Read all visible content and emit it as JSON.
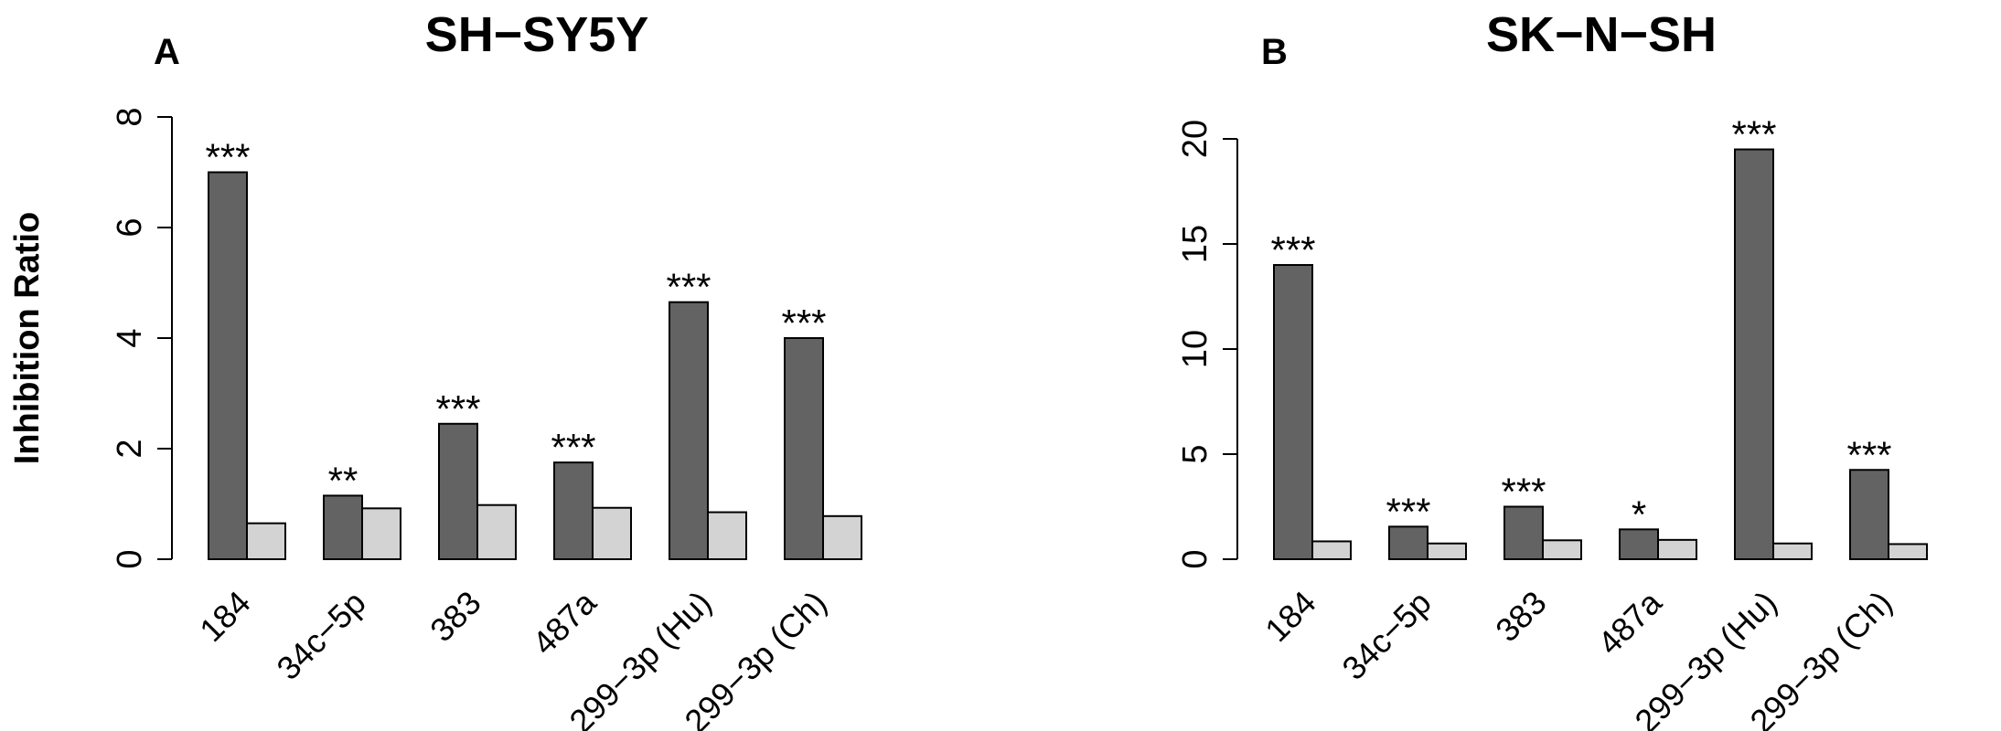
{
  "chart_data": [
    {
      "type": "bar",
      "panel": "A",
      "title": "SH−SY5Y",
      "ylabel": "Inhibition Ratio",
      "ylim": [
        0,
        8
      ],
      "yticks": [
        0,
        2,
        4,
        6,
        8
      ],
      "categories": [
        "184",
        "34c−5p",
        "383",
        "487a",
        "299−3p (Hu)",
        "299−3p (Ch)"
      ],
      "series": [
        {
          "values": [
            7.0,
            1.15,
            2.45,
            1.75,
            4.65,
            4.0
          ],
          "color": "#636363"
        },
        {
          "values": [
            0.65,
            0.92,
            0.98,
            0.93,
            0.85,
            0.78
          ],
          "color": "#d3d3d3"
        }
      ],
      "significance": [
        "***",
        "**",
        "***",
        "***",
        "***",
        "***"
      ]
    },
    {
      "type": "bar",
      "panel": "B",
      "title": "SK−N−SH",
      "ylabel": "",
      "ylim": [
        0,
        20
      ],
      "yticks": [
        0,
        5,
        10,
        15,
        20
      ],
      "categories": [
        "184",
        "34c−5p",
        "383",
        "487a",
        "299−3p (Hu)",
        "299−3p (Ch)"
      ],
      "series": [
        {
          "values": [
            14.0,
            1.55,
            2.5,
            1.42,
            19.5,
            4.25
          ],
          "color": "#636363"
        },
        {
          "values": [
            0.85,
            0.75,
            0.9,
            0.92,
            0.75,
            0.72
          ],
          "color": "#d3d3d3"
        }
      ],
      "significance": [
        "***",
        "***",
        "***",
        "*",
        "***",
        "***"
      ]
    }
  ]
}
